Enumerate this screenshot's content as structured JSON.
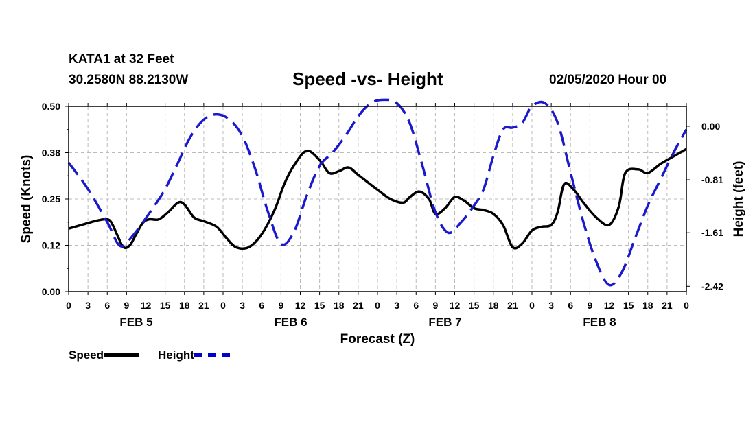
{
  "header": {
    "station": "KATA1 at 32 Feet",
    "coordinates": "30.2580N 88.2130W",
    "title": "Speed -vs- Height",
    "timestamp": "02/05/2020 Hour 00"
  },
  "colors": {
    "speed": "#000000",
    "height": "#1a1acc",
    "grid": "#bbbbbb"
  },
  "chart_data": {
    "type": "line",
    "title": "Speed -vs- Height",
    "xlabel": "Forecast (Z)",
    "ylabel_left": "Speed (Knots)",
    "ylabel_right": "Height (feet)",
    "x_range_hours": [
      0,
      96
    ],
    "x_tick_labels": [
      "0",
      "3",
      "6",
      "9",
      "12",
      "15",
      "18",
      "21",
      "0",
      "3",
      "6",
      "9",
      "12",
      "15",
      "18",
      "21",
      "0",
      "3",
      "6",
      "9",
      "12",
      "15",
      "18",
      "21",
      "0",
      "3",
      "6",
      "9",
      "12",
      "15",
      "18",
      "21",
      "0"
    ],
    "day_labels": [
      {
        "label": "FEB 5",
        "hour": 10.5
      },
      {
        "label": "FEB 6",
        "hour": 34.5
      },
      {
        "label": "FEB 7",
        "hour": 58.5
      },
      {
        "label": "FEB 8",
        "hour": 82.5
      }
    ],
    "left_axis": {
      "ylim": [
        0.0,
        0.5
      ],
      "ticks": [
        "0.00",
        "0.12",
        "0.25",
        "0.38",
        "0.50"
      ],
      "tick_values": [
        0.0,
        0.125,
        0.25,
        0.375,
        0.5
      ]
    },
    "right_axis": {
      "ylim": [
        -2.5,
        0.3
      ],
      "ticks": [
        "0.00",
        "-0.81",
        "-1.61",
        "-2.42"
      ],
      "tick_values": [
        0.0,
        -0.81,
        -1.61,
        -2.42
      ]
    },
    "grid": true,
    "legend": [
      {
        "label": "Speed",
        "style": "solid"
      },
      {
        "label": "Height",
        "style": "dashed"
      }
    ],
    "series": [
      {
        "name": "Speed",
        "axis": "left",
        "style": "solid",
        "x": [
          0,
          2,
          4,
          5.5,
          6.5,
          7.5,
          8.5,
          9.5,
          10.5,
          11.5,
          12.5,
          14,
          15.5,
          17,
          18,
          19.5,
          21,
          23,
          24.5,
          26,
          28,
          30,
          32,
          33.5,
          35,
          37,
          39,
          40.5,
          42,
          43.5,
          45,
          46.5,
          48,
          50,
          52,
          53,
          54.5,
          56,
          57,
          58.5,
          60,
          61.5,
          63,
          64.5,
          66,
          67.5,
          69,
          70.5,
          72,
          73.5,
          75,
          76,
          77,
          78.5,
          80,
          82,
          84,
          85.5,
          86.5,
          88.5,
          90,
          92,
          94,
          96
        ],
        "values": [
          0.17,
          0.18,
          0.19,
          0.195,
          0.19,
          0.155,
          0.12,
          0.125,
          0.155,
          0.185,
          0.195,
          0.195,
          0.215,
          0.24,
          0.235,
          0.2,
          0.19,
          0.175,
          0.145,
          0.12,
          0.12,
          0.155,
          0.22,
          0.29,
          0.34,
          0.38,
          0.355,
          0.32,
          0.325,
          0.335,
          0.315,
          0.295,
          0.275,
          0.25,
          0.24,
          0.255,
          0.27,
          0.25,
          0.21,
          0.225,
          0.255,
          0.245,
          0.225,
          0.22,
          0.21,
          0.18,
          0.12,
          0.13,
          0.165,
          0.175,
          0.18,
          0.215,
          0.29,
          0.275,
          0.24,
          0.2,
          0.18,
          0.23,
          0.32,
          0.33,
          0.32,
          0.345,
          0.365,
          0.385
        ]
      },
      {
        "name": "Height",
        "axis": "right",
        "style": "dashed",
        "x": [
          0,
          3,
          6,
          8,
          10,
          13,
          15,
          17,
          19,
          21,
          23,
          25,
          27,
          29,
          31,
          33,
          35,
          37,
          39,
          41,
          43,
          45,
          47,
          49,
          51,
          53,
          55,
          57,
          59,
          61,
          63,
          64.5,
          66,
          67.5,
          69,
          70.5,
          72,
          74,
          76,
          78,
          80,
          82,
          84,
          86,
          88,
          90,
          92,
          94,
          96
        ],
        "values": [
          -0.55,
          -0.95,
          -1.45,
          -1.81,
          -1.65,
          -1.25,
          -0.95,
          -0.55,
          -0.15,
          0.1,
          0.18,
          0.1,
          -0.15,
          -0.65,
          -1.3,
          -1.78,
          -1.6,
          -1.05,
          -0.6,
          -0.4,
          -0.15,
          0.15,
          0.35,
          0.4,
          0.35,
          0.05,
          -0.6,
          -1.3,
          -1.61,
          -1.45,
          -1.2,
          -0.95,
          -0.45,
          -0.05,
          -0.02,
          0.05,
          0.3,
          0.35,
          0.05,
          -0.7,
          -1.45,
          -2.05,
          -2.4,
          -2.2,
          -1.7,
          -1.2,
          -0.8,
          -0.4,
          -0.05
        ]
      }
    ]
  }
}
